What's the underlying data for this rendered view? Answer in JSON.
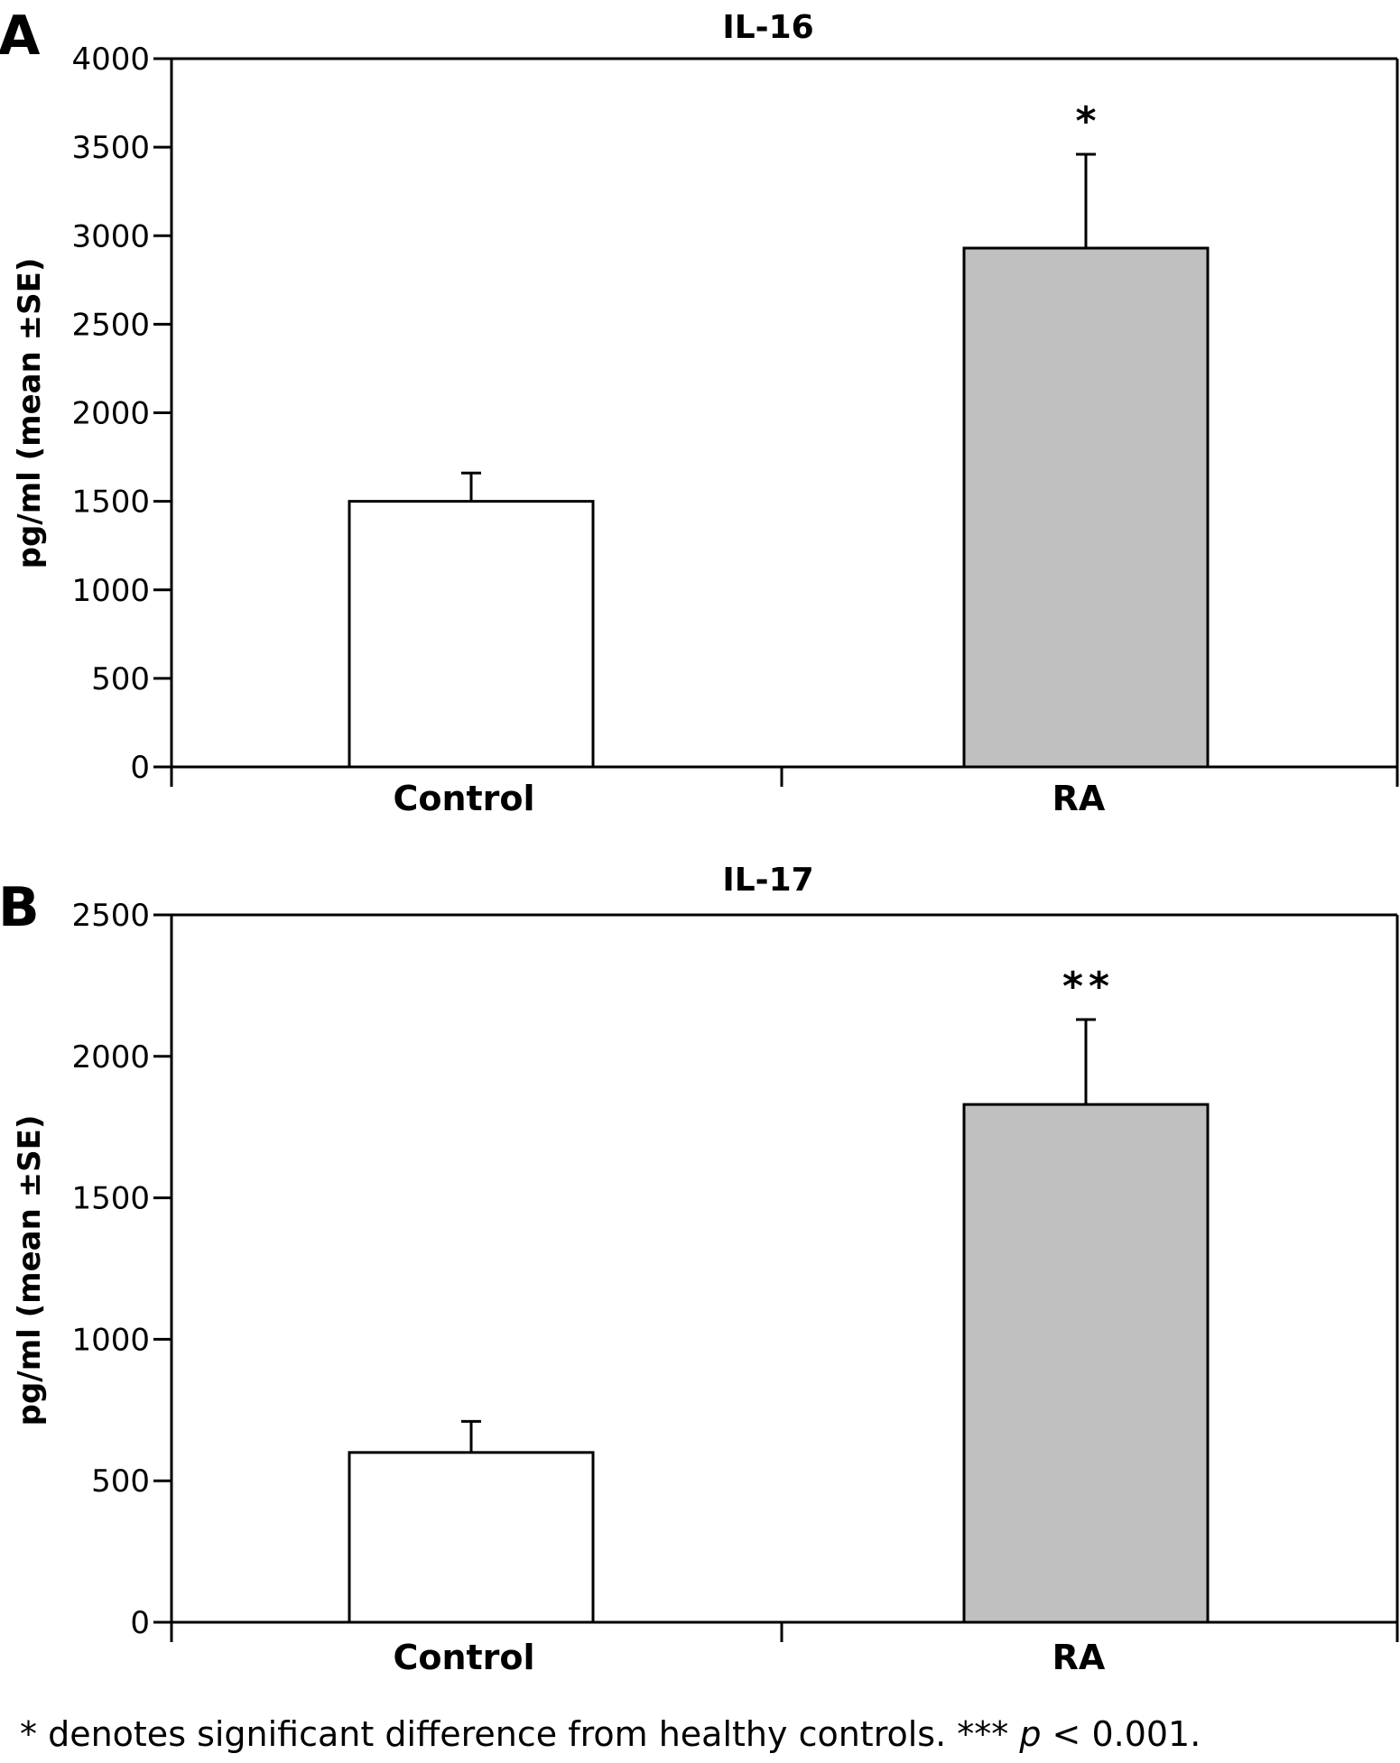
{
  "footnote": {
    "prefix": "* denotes significant difference from healthy controls. *** ",
    "p_symbol": "p",
    "suffix": " < 0.001."
  },
  "chart_data": [
    {
      "type": "bar",
      "panel": "A",
      "title": "IL-16",
      "xlabel": "",
      "ylabel": "pg/ml (mean ±SE)",
      "categories": [
        "Control",
        "RA"
      ],
      "values": [
        1500,
        2930
      ],
      "errors": [
        160,
        530
      ],
      "significance": [
        "",
        "*"
      ],
      "bar_colors": [
        "#ffffff",
        "#c0c0c0"
      ],
      "ylim": [
        0,
        4000
      ],
      "yticks": [
        0,
        500,
        1000,
        1500,
        2000,
        2500,
        3000,
        3500,
        4000
      ],
      "grid": false,
      "legend": "none"
    },
    {
      "type": "bar",
      "panel": "B",
      "title": "IL-17",
      "xlabel": "",
      "ylabel": "pg/ml (mean ±SE)",
      "categories": [
        "Control",
        "RA"
      ],
      "values": [
        600,
        1830
      ],
      "errors": [
        110,
        300
      ],
      "significance": [
        "",
        "**"
      ],
      "bar_colors": [
        "#ffffff",
        "#c0c0c0"
      ],
      "ylim": [
        0,
        2500
      ],
      "yticks": [
        0,
        500,
        1000,
        1500,
        2000,
        2500
      ],
      "grid": false,
      "legend": "none"
    }
  ]
}
